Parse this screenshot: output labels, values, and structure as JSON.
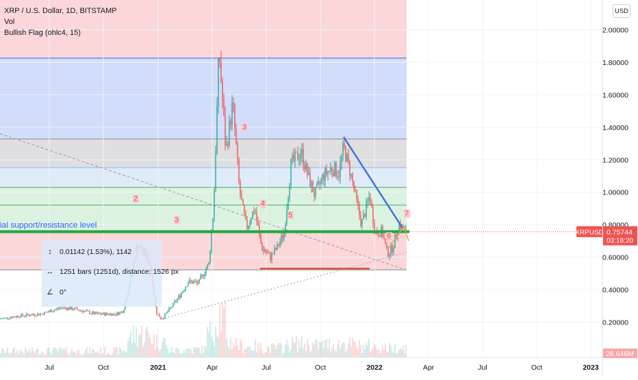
{
  "legend": {
    "symbol_line": "XRP / U.S. Dollar, 1D, BITSTAMP",
    "vol_label": "Vol",
    "indicator_label": "Bullish Flag (ohlc4, 15)"
  },
  "currency_button": "USD",
  "price_badge": {
    "symbol": "XRPUSD",
    "price": "0.75744",
    "countdown": "03:18:20"
  },
  "volume_badge": "26.646M",
  "support_text": "ial support/resistance level",
  "measure_tool": {
    "price_change": "0.01142 (1.53%), 1142",
    "bars": "1251 bars (1251d), distance: 1526 px",
    "angle": "0°"
  },
  "wave_labels": [
    "2",
    "3",
    "3",
    "4",
    "5",
    "6",
    "7"
  ],
  "colors": {
    "up": "#26a69a",
    "down": "#ef5350",
    "support_line": "#26a641",
    "trend_line": "#3f73e0",
    "flag_bottom": "#e0553a",
    "price_badge": "#ef5350",
    "red_zone": "#f9c9cc",
    "blue_zone": "#ccd9f9",
    "grey_zone": "#dcdcde",
    "green_zone": "#d6f0da"
  },
  "chart_data": {
    "type": "candlestick",
    "y_axis": {
      "scale": "linear",
      "ticks": [
        "2.00000",
        "1.80000",
        "1.60000",
        "1.40000",
        "1.20000",
        "1.00000",
        "0.80000",
        "0.60000",
        "0.40000",
        "0.20000"
      ]
    },
    "x_axis": {
      "ticks": [
        "Jul",
        "Oct",
        "2021",
        "Apr",
        "Jul",
        "Oct",
        "2022",
        "Apr",
        "Jul",
        "Oct",
        "2023"
      ]
    },
    "last_price": 0.75744,
    "price_path": [
      [
        0,
        0.22
      ],
      [
        30,
        0.24
      ],
      [
        60,
        0.25
      ],
      [
        90,
        0.29
      ],
      [
        110,
        0.28
      ],
      [
        140,
        0.25
      ],
      [
        170,
        0.25
      ],
      [
        180,
        0.27
      ],
      [
        190,
        0.45
      ],
      [
        200,
        0.68
      ],
      [
        212,
        0.62
      ],
      [
        220,
        0.55
      ],
      [
        228,
        0.26
      ],
      [
        236,
        0.22
      ],
      [
        250,
        0.29
      ],
      [
        262,
        0.36
      ],
      [
        275,
        0.45
      ],
      [
        290,
        0.44
      ],
      [
        305,
        0.56
      ],
      [
        312,
        0.9
      ],
      [
        320,
        1.88
      ],
      [
        330,
        1.25
      ],
      [
        340,
        1.55
      ],
      [
        350,
        1.0
      ],
      [
        360,
        0.78
      ],
      [
        372,
        0.9
      ],
      [
        382,
        0.66
      ],
      [
        395,
        0.6
      ],
      [
        405,
        0.66
      ],
      [
        415,
        0.75
      ],
      [
        425,
        1.17
      ],
      [
        440,
        1.25
      ],
      [
        450,
        1.1
      ],
      [
        460,
        0.98
      ],
      [
        472,
        1.1
      ],
      [
        485,
        1.15
      ],
      [
        495,
        1.12
      ],
      [
        502,
        1.28
      ],
      [
        512,
        1.12
      ],
      [
        520,
        0.96
      ],
      [
        528,
        0.8
      ],
      [
        540,
        0.98
      ],
      [
        548,
        0.75
      ],
      [
        558,
        0.76
      ],
      [
        566,
        0.62
      ],
      [
        574,
        0.66
      ],
      [
        582,
        0.8
      ],
      [
        590,
        0.77
      ],
      [
        594,
        0.757
      ]
    ],
    "horizontal_levels": [
      1.826,
      1.328,
      1.151,
      1.03,
      0.921,
      0.757,
      0.522
    ]
  }
}
